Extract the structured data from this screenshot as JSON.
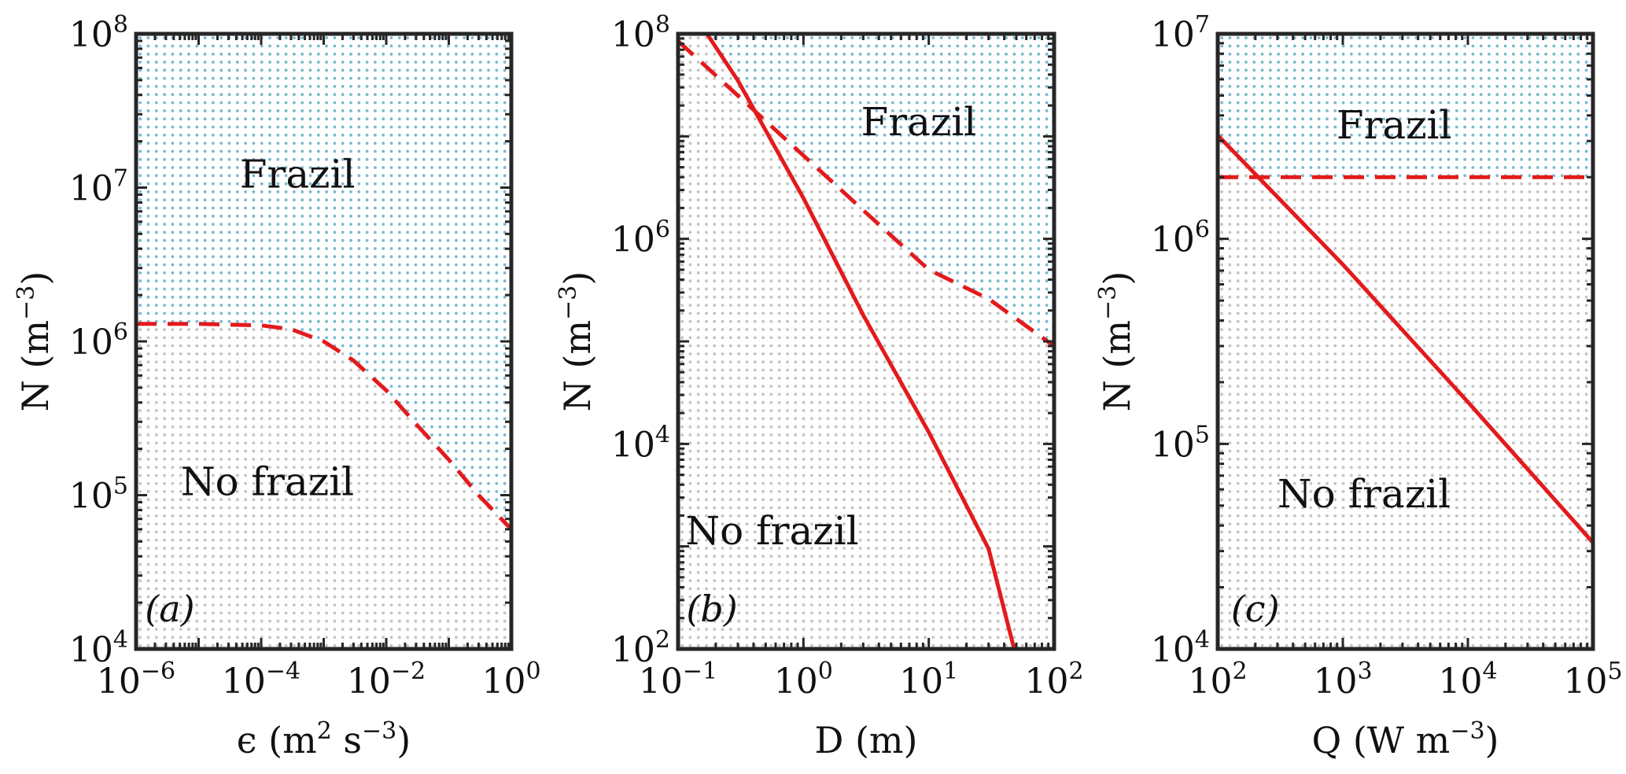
{
  "chart_data": [
    {
      "panel": "(a)",
      "type": "line",
      "x_scale": "log",
      "y_scale": "log",
      "xlim": [
        1e-06,
        1
      ],
      "ylim": [
        10000.0,
        100000000.0
      ],
      "xticks": [
        {
          "base": "10",
          "exp": "−6",
          "value": 1e-06
        },
        {
          "base": "10",
          "exp": "−4",
          "value": 0.0001
        },
        {
          "base": "10",
          "exp": "−2",
          "value": 0.01
        },
        {
          "base": "10",
          "exp": "0",
          "value": 1
        }
      ],
      "yticks": [
        {
          "base": "10",
          "exp": "4",
          "value": 10000.0
        },
        {
          "base": "10",
          "exp": "5",
          "value": 100000.0
        },
        {
          "base": "10",
          "exp": "6",
          "value": 1000000.0
        },
        {
          "base": "10",
          "exp": "7",
          "value": 10000000.0
        },
        {
          "base": "10",
          "exp": "8",
          "value": 100000000.0
        }
      ],
      "xlabel": {
        "main": "ϵ (m",
        "sup1": "2",
        "mid": " s",
        "sup2": "−3",
        "end": ")"
      },
      "ylabel": {
        "main": "N (m",
        "sup": "−3",
        "end": ")"
      },
      "regions": {
        "upper": "Frazil",
        "lower": "No frazil"
      },
      "upper_region_color": "#7ab8d0",
      "lower_region_color": "#c4c4c4",
      "series": [
        {
          "style": "dashed",
          "color": "#e31a1c",
          "x": [
            1e-06,
            1e-05,
            0.0001,
            0.0003,
            0.001,
            0.003,
            0.01,
            0.03,
            0.1,
            0.3,
            1
          ],
          "y": [
            1300000.0,
            1300000.0,
            1270000.0,
            1200000.0,
            1000000.0,
            750000.0,
            480000.0,
            290000.0,
            170000.0,
            100000.0,
            60000.0
          ]
        }
      ],
      "grid": false
    },
    {
      "panel": "(b)",
      "type": "line",
      "x_scale": "log",
      "y_scale": "log",
      "xlim": [
        0.1,
        100
      ],
      "ylim": [
        100.0,
        100000000.0
      ],
      "xticks": [
        {
          "base": "10",
          "exp": "−1",
          "value": 0.1
        },
        {
          "base": "10",
          "exp": "0",
          "value": 1
        },
        {
          "base": "10",
          "exp": "1",
          "value": 10
        },
        {
          "base": "10",
          "exp": "2",
          "value": 100
        }
      ],
      "yticks": [
        {
          "base": "10",
          "exp": "2",
          "value": 100.0
        },
        {
          "base": "10",
          "exp": "4",
          "value": 10000.0
        },
        {
          "base": "10",
          "exp": "6",
          "value": 1000000.0
        },
        {
          "base": "10",
          "exp": "8",
          "value": 100000000.0
        }
      ],
      "xlabel": {
        "main": "D (m)"
      },
      "ylabel": {
        "main": "N (m",
        "sup": "−3",
        "end": ")"
      },
      "regions": {
        "upper": "Frazil",
        "lower": "No frazil"
      },
      "series": [
        {
          "style": "solid",
          "color": "#e31a1c",
          "x": [
            0.17,
            0.3,
            1,
            3,
            10,
            30,
            48
          ],
          "y": [
            100000000.0,
            35000000.0,
            2500000.0,
            180000.0,
            13000.0,
            950.0,
            100.0
          ]
        },
        {
          "style": "dashed",
          "color": "#e31a1c",
          "x": [
            0.1,
            0.3,
            1,
            3,
            10,
            30,
            100
          ],
          "y": [
            85000000.0,
            25000000.0,
            6500000.0,
            1900000.0,
            500000.0,
            260000.0,
            90000.0
          ]
        }
      ],
      "grid": false
    },
    {
      "panel": "(c)",
      "type": "line",
      "x_scale": "log",
      "y_scale": "log",
      "xlim": [
        100.0,
        100000.0
      ],
      "ylim": [
        10000.0,
        10000000.0
      ],
      "xticks": [
        {
          "base": "10",
          "exp": "2",
          "value": 100.0
        },
        {
          "base": "10",
          "exp": "3",
          "value": 1000.0
        },
        {
          "base": "10",
          "exp": "4",
          "value": 10000.0
        },
        {
          "base": "10",
          "exp": "5",
          "value": 100000.0
        }
      ],
      "yticks": [
        {
          "base": "10",
          "exp": "4",
          "value": 10000.0
        },
        {
          "base": "10",
          "exp": "5",
          "value": 100000.0
        },
        {
          "base": "10",
          "exp": "6",
          "value": 1000000.0
        },
        {
          "base": "10",
          "exp": "7",
          "value": 10000000.0
        }
      ],
      "xlabel": {
        "main": "Q (W m",
        "sup": "−3",
        "end": ")"
      },
      "ylabel": {
        "main": "N (m",
        "sup": "−3",
        "end": ")"
      },
      "regions": {
        "upper": "Frazil",
        "lower": "No frazil"
      },
      "series": [
        {
          "style": "solid",
          "color": "#e31a1c",
          "x": [
            100.0,
            1000.0,
            10000.0,
            100000.0
          ],
          "y": [
            3200000.0,
            750000.0,
            160000.0,
            33000.0
          ]
        },
        {
          "style": "dashed",
          "color": "#e31a1c",
          "x": [
            100.0,
            100000.0
          ],
          "y": [
            2000000.0,
            2000000.0
          ]
        }
      ],
      "grid": false
    }
  ]
}
